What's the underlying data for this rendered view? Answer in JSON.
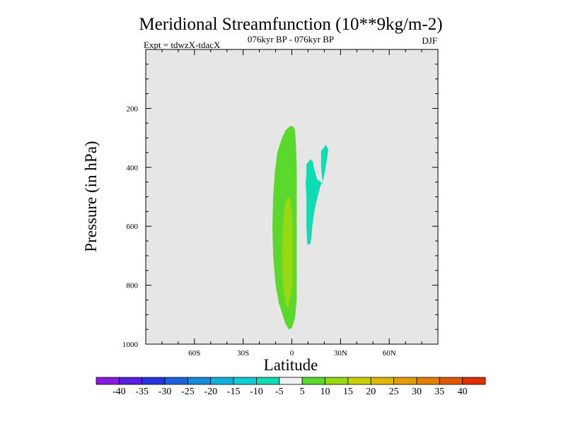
{
  "chart_data": {
    "type": "heatmap",
    "title": "Meridional Streamfunction (10**9kg/m-2)",
    "subtitle": "076kyr BP - 076kyr BP",
    "experiment_label": "Expt = tdwzX-tdacX",
    "season": "DJF",
    "xlabel": "Latitude",
    "ylabel": "Pressure (in hPa)",
    "xlim": [
      -90,
      90
    ],
    "ylim": [
      1000,
      0
    ],
    "x_ticks": [
      {
        "value": -60,
        "label": "60S"
      },
      {
        "value": -30,
        "label": "30S"
      },
      {
        "value": 0,
        "label": "0"
      },
      {
        "value": 30,
        "label": "30N"
      },
      {
        "value": 60,
        "label": "60N"
      }
    ],
    "y_ticks": [
      {
        "value": 200,
        "label": "200"
      },
      {
        "value": 400,
        "label": "400"
      },
      {
        "value": 600,
        "label": "600"
      },
      {
        "value": 800,
        "label": "800"
      },
      {
        "value": 1000,
        "label": "1000"
      }
    ],
    "background_color": "#e6e6e6",
    "colorbar": {
      "colors": [
        "#8a1ae0",
        "#5a1ee0",
        "#2a34dc",
        "#1e63dc",
        "#168cdc",
        "#12b0dc",
        "#10cdd8",
        "#10dcb4",
        "#f0f0f0",
        "#5ad82c",
        "#96d812",
        "#c8d000",
        "#e0b800",
        "#e49c00",
        "#e27e00",
        "#e05800",
        "#dc3000"
      ],
      "labels": [
        "-40",
        "-35",
        "-30",
        "-25",
        "-20",
        "-15",
        "-10",
        "-5",
        "5",
        "10",
        "15",
        "20",
        "25",
        "30",
        "35",
        "40"
      ]
    },
    "regions": [
      {
        "level": "5 to 10",
        "color": "#5ad82c",
        "outline": [
          [
            -1,
            260
          ],
          [
            1,
            262
          ],
          [
            2,
            275
          ],
          [
            2.5,
            320
          ],
          [
            3,
            400
          ],
          [
            3,
            550
          ],
          [
            3,
            700
          ],
          [
            3,
            850
          ],
          [
            2,
            910
          ],
          [
            0,
            945
          ],
          [
            -2,
            950
          ],
          [
            -4,
            930
          ],
          [
            -8,
            860
          ],
          [
            -10,
            800
          ],
          [
            -11.5,
            700
          ],
          [
            -12,
            600
          ],
          [
            -11.5,
            500
          ],
          [
            -10.5,
            420
          ],
          [
            -9,
            350
          ],
          [
            -6,
            300
          ],
          [
            -4,
            275
          ]
        ]
      },
      {
        "level": "10 to 15",
        "color": "#96d812",
        "outline": [
          [
            -2.5,
            500
          ],
          [
            -1,
            505
          ],
          [
            0,
            540
          ],
          [
            0.5,
            600
          ],
          [
            0.5,
            700
          ],
          [
            0.5,
            800
          ],
          [
            -1,
            845
          ],
          [
            -2.5,
            880
          ],
          [
            -4,
            860
          ],
          [
            -5.5,
            800
          ],
          [
            -6,
            700
          ],
          [
            -5.5,
            600
          ],
          [
            -4.5,
            530
          ]
        ]
      },
      {
        "level": "-5 to -10",
        "color": "#10dcb4",
        "outline": [
          [
            9,
            390
          ],
          [
            11.5,
            372
          ],
          [
            13,
            380
          ],
          [
            13.5,
            400
          ],
          [
            15.5,
            440
          ],
          [
            19,
            455
          ],
          [
            18,
            400
          ],
          [
            18,
            345
          ],
          [
            21,
            323
          ],
          [
            22.5,
            340
          ],
          [
            21.5,
            378
          ],
          [
            19.5,
            440
          ],
          [
            17.5,
            465
          ],
          [
            14.5,
            530
          ],
          [
            13,
            580
          ],
          [
            12,
            640
          ],
          [
            11.5,
            660
          ],
          [
            9.5,
            662
          ],
          [
            9,
            600
          ],
          [
            9,
            500
          ],
          [
            8.5,
            452
          ],
          [
            9,
            420
          ]
        ]
      }
    ]
  }
}
